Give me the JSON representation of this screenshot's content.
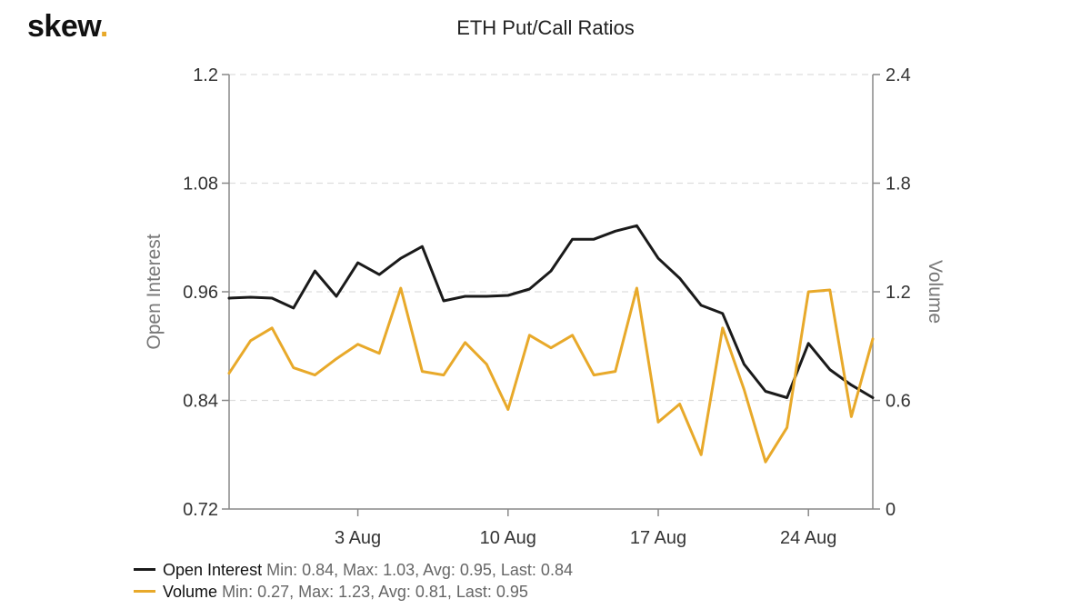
{
  "logo": {
    "text": "skew",
    "dot": "."
  },
  "chart_data": {
    "type": "line",
    "title": "ETH Put/Call Ratios",
    "x_ticks": [
      "3 Aug",
      "10 Aug",
      "17 Aug",
      "24 Aug"
    ],
    "x_range": [
      "2020-07-28",
      "2020-08-27"
    ],
    "y_left": {
      "label": "Open Interest",
      "ticks": [
        "1.2",
        "1.08",
        "0.96",
        "0.84",
        "0.72"
      ],
      "range": [
        0.72,
        1.2
      ]
    },
    "y_right": {
      "label": "Volume",
      "ticks": [
        "2.4",
        "1.8",
        "1.2",
        "0.6",
        "0"
      ],
      "range": [
        0,
        2.4
      ]
    },
    "grid": "horizontal-dashed",
    "legend_position": "bottom-left",
    "series": [
      {
        "name": "Open Interest",
        "axis": "left",
        "color": "#1a1a1a",
        "stats": "Min: 0.84, Max: 1.03, Avg: 0.95, Last: 0.84",
        "values": [
          0.953,
          0.954,
          0.953,
          0.942,
          0.983,
          0.955,
          0.992,
          0.979,
          0.997,
          1.01,
          0.95,
          0.955,
          0.955,
          0.956,
          0.963,
          0.983,
          1.018,
          1.018,
          1.027,
          1.033,
          0.997,
          0.975,
          0.945,
          0.936,
          0.88,
          0.85,
          0.843,
          0.903,
          0.874,
          0.857,
          0.843
        ]
      },
      {
        "name": "Volume",
        "axis": "right",
        "color": "#e8a92a",
        "stats": "Min: 0.27, Max: 1.23, Avg: 0.81, Last: 0.95",
        "values": [
          0.75,
          0.93,
          1.0,
          0.78,
          0.74,
          0.83,
          0.91,
          0.86,
          1.22,
          0.76,
          0.74,
          0.92,
          0.8,
          0.55,
          0.96,
          0.89,
          0.96,
          0.74,
          0.76,
          1.22,
          0.48,
          0.58,
          0.3,
          1.0,
          0.66,
          0.26,
          0.45,
          1.2,
          1.21,
          0.51,
          0.94
        ]
      }
    ]
  }
}
